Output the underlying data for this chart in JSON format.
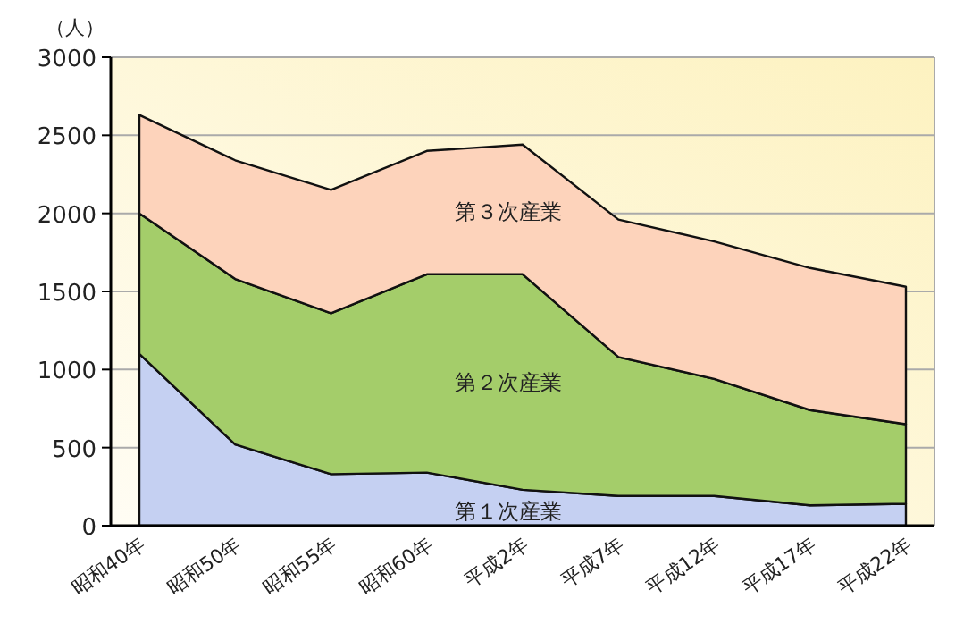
{
  "chart_data": {
    "type": "area",
    "stacked": true,
    "ylabel": "（人）",
    "categories": [
      "昭和40年",
      "昭和50年",
      "昭和55年",
      "昭和60年",
      "平成2年",
      "平成7年",
      "平成12年",
      "平成17年",
      "平成22年"
    ],
    "series": [
      {
        "name": "第１次産業",
        "color": "#c5d0f2",
        "values": [
          1100,
          520,
          330,
          340,
          230,
          190,
          190,
          130,
          140
        ]
      },
      {
        "name": "第２次産業",
        "color": "#a4cd6a",
        "values": [
          900,
          1060,
          1030,
          1270,
          1380,
          890,
          750,
          610,
          510
        ]
      },
      {
        "name": "第３次産業",
        "color": "#fdd3bb",
        "values": [
          630,
          760,
          790,
          790,
          830,
          880,
          880,
          910,
          880
        ]
      }
    ],
    "ylim": [
      0,
      3000
    ],
    "yticks": [
      0,
      500,
      1000,
      1500,
      2000,
      2500,
      3000
    ],
    "grid": "y"
  }
}
